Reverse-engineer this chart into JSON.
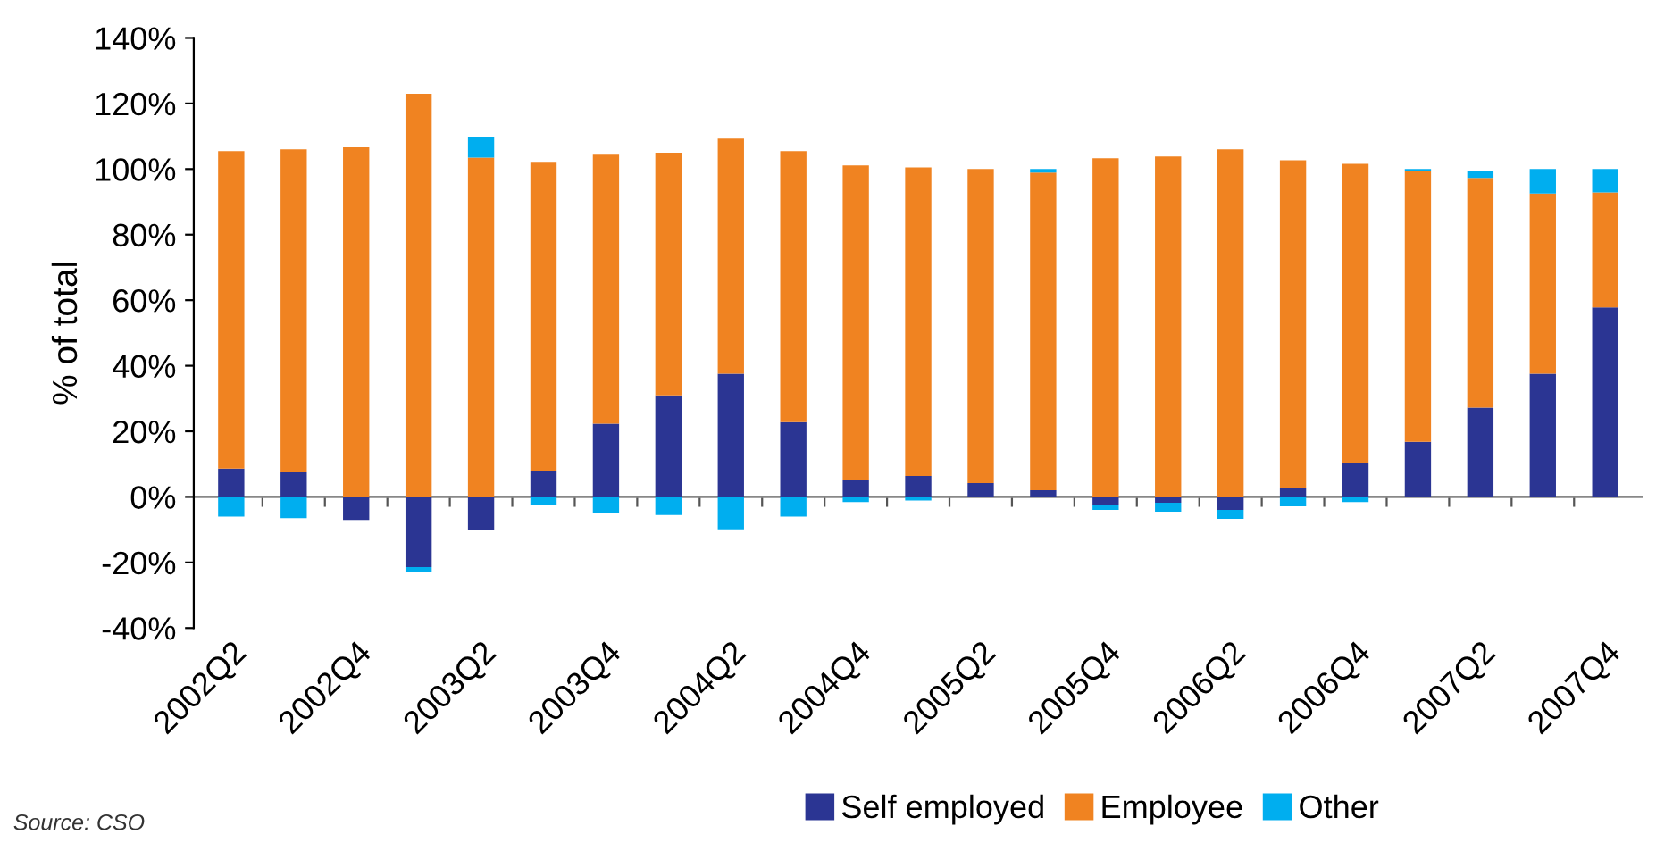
{
  "chart_data": {
    "type": "bar",
    "stacked": true,
    "ylabel": "% of total",
    "categories": [
      "2002Q2",
      null,
      "2002Q4",
      null,
      "2003Q2",
      null,
      "2003Q4",
      null,
      "2004Q2",
      null,
      "2004Q4",
      null,
      "2005Q2",
      null,
      "2005Q4",
      null,
      "2006Q2",
      null,
      "2006Q4",
      null,
      "2007Q2",
      null,
      "2007Q4"
    ],
    "series": [
      {
        "name": "Self employed",
        "color": "#2b3593",
        "values": [
          8.6,
          7.5,
          -7,
          -21.4,
          -10,
          8,
          22.3,
          31,
          37.6,
          22.8,
          5.3,
          6.4,
          4.2,
          2,
          -2.4,
          -1.8,
          -4,
          2.6,
          10.2,
          16.8,
          27.2,
          37.6,
          57.8
        ]
      },
      {
        "name": "Employee",
        "color": "#f08321",
        "values": [
          96.9,
          98.5,
          106.6,
          123,
          103.5,
          94.2,
          82.1,
          74,
          71.7,
          82.7,
          95.8,
          94.1,
          95.8,
          96.9,
          103.3,
          103.8,
          106,
          100.1,
          91.4,
          82.5,
          70.1,
          54.9,
          35.1
        ]
      },
      {
        "name": "Other",
        "color": "#00aeef",
        "values": [
          -6,
          -6.5,
          0,
          -1.6,
          6.4,
          -2.4,
          -4.9,
          -5.5,
          -9.9,
          -6,
          -1.6,
          -1.1,
          0,
          1.1,
          -1.6,
          -2.7,
          -2.7,
          -2.9,
          -1.6,
          0.7,
          2.2,
          7.5,
          7.1
        ]
      }
    ],
    "ylim": [
      -40,
      140
    ],
    "yticks": [
      {
        "value": -40,
        "label": "-40%"
      },
      {
        "value": -20,
        "label": "-20%"
      },
      {
        "value": 0,
        "label": "0%"
      },
      {
        "value": 20,
        "label": "20%"
      },
      {
        "value": 40,
        "label": "40%"
      },
      {
        "value": 60,
        "label": "60%"
      },
      {
        "value": 80,
        "label": "80%"
      },
      {
        "value": 100,
        "label": "100%"
      },
      {
        "value": 120,
        "label": "120%"
      },
      {
        "value": 140,
        "label": "140%"
      }
    ],
    "ref_lines": [
      {
        "axis": "y",
        "value": 0,
        "color": "#888888"
      }
    ],
    "grid": false,
    "legend": "bottom",
    "annotations": [
      "Source: CSO"
    ]
  }
}
